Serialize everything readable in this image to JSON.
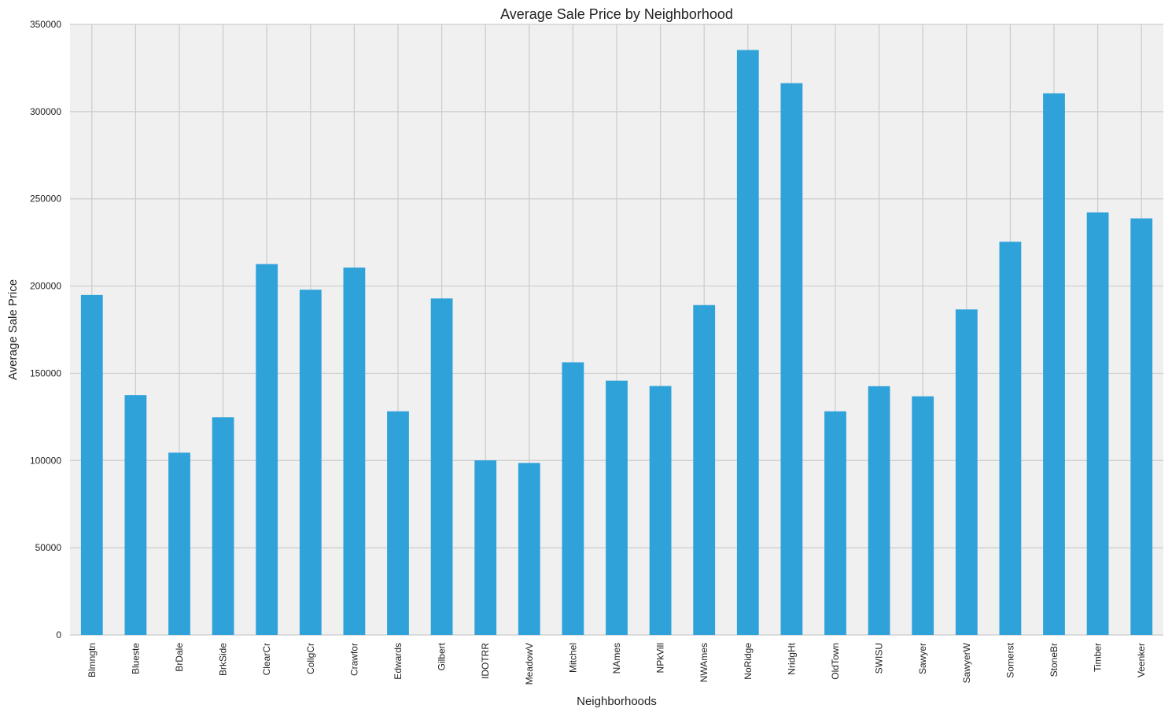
{
  "chart_data": {
    "type": "bar",
    "title": "Average Sale Price by Neighborhood",
    "xlabel": "Neighborhoods",
    "ylabel": "Average Sale Price",
    "ylim": [
      0,
      350000
    ],
    "yticks": [
      0,
      50000,
      100000,
      150000,
      200000,
      250000,
      300000,
      350000
    ],
    "grid": true,
    "legend": "none",
    "colors": {
      "bar": "#30a2da",
      "plot_bg": "#f0f0f0",
      "grid": "#cbcbcb"
    },
    "categories": [
      "Blmngtn",
      "Blueste",
      "BrDale",
      "BrkSide",
      "ClearCr",
      "CollgCr",
      "Crawfor",
      "Edwards",
      "Gilbert",
      "IDOTRR",
      "MeadowV",
      "Mitchel",
      "NAmes",
      "NPkVill",
      "NWAmes",
      "NoRidge",
      "NridgHt",
      "OldTown",
      "SWISU",
      "Sawyer",
      "SawyerW",
      "Somerst",
      "StoneBr",
      "Timber",
      "Veenker"
    ],
    "values": [
      194900,
      137500,
      104500,
      124800,
      212600,
      197900,
      210600,
      128200,
      192900,
      100100,
      98600,
      156300,
      145800,
      142700,
      189100,
      335300,
      316300,
      128200,
      142600,
      136800,
      186600,
      225400,
      310500,
      242200,
      238800
    ]
  }
}
